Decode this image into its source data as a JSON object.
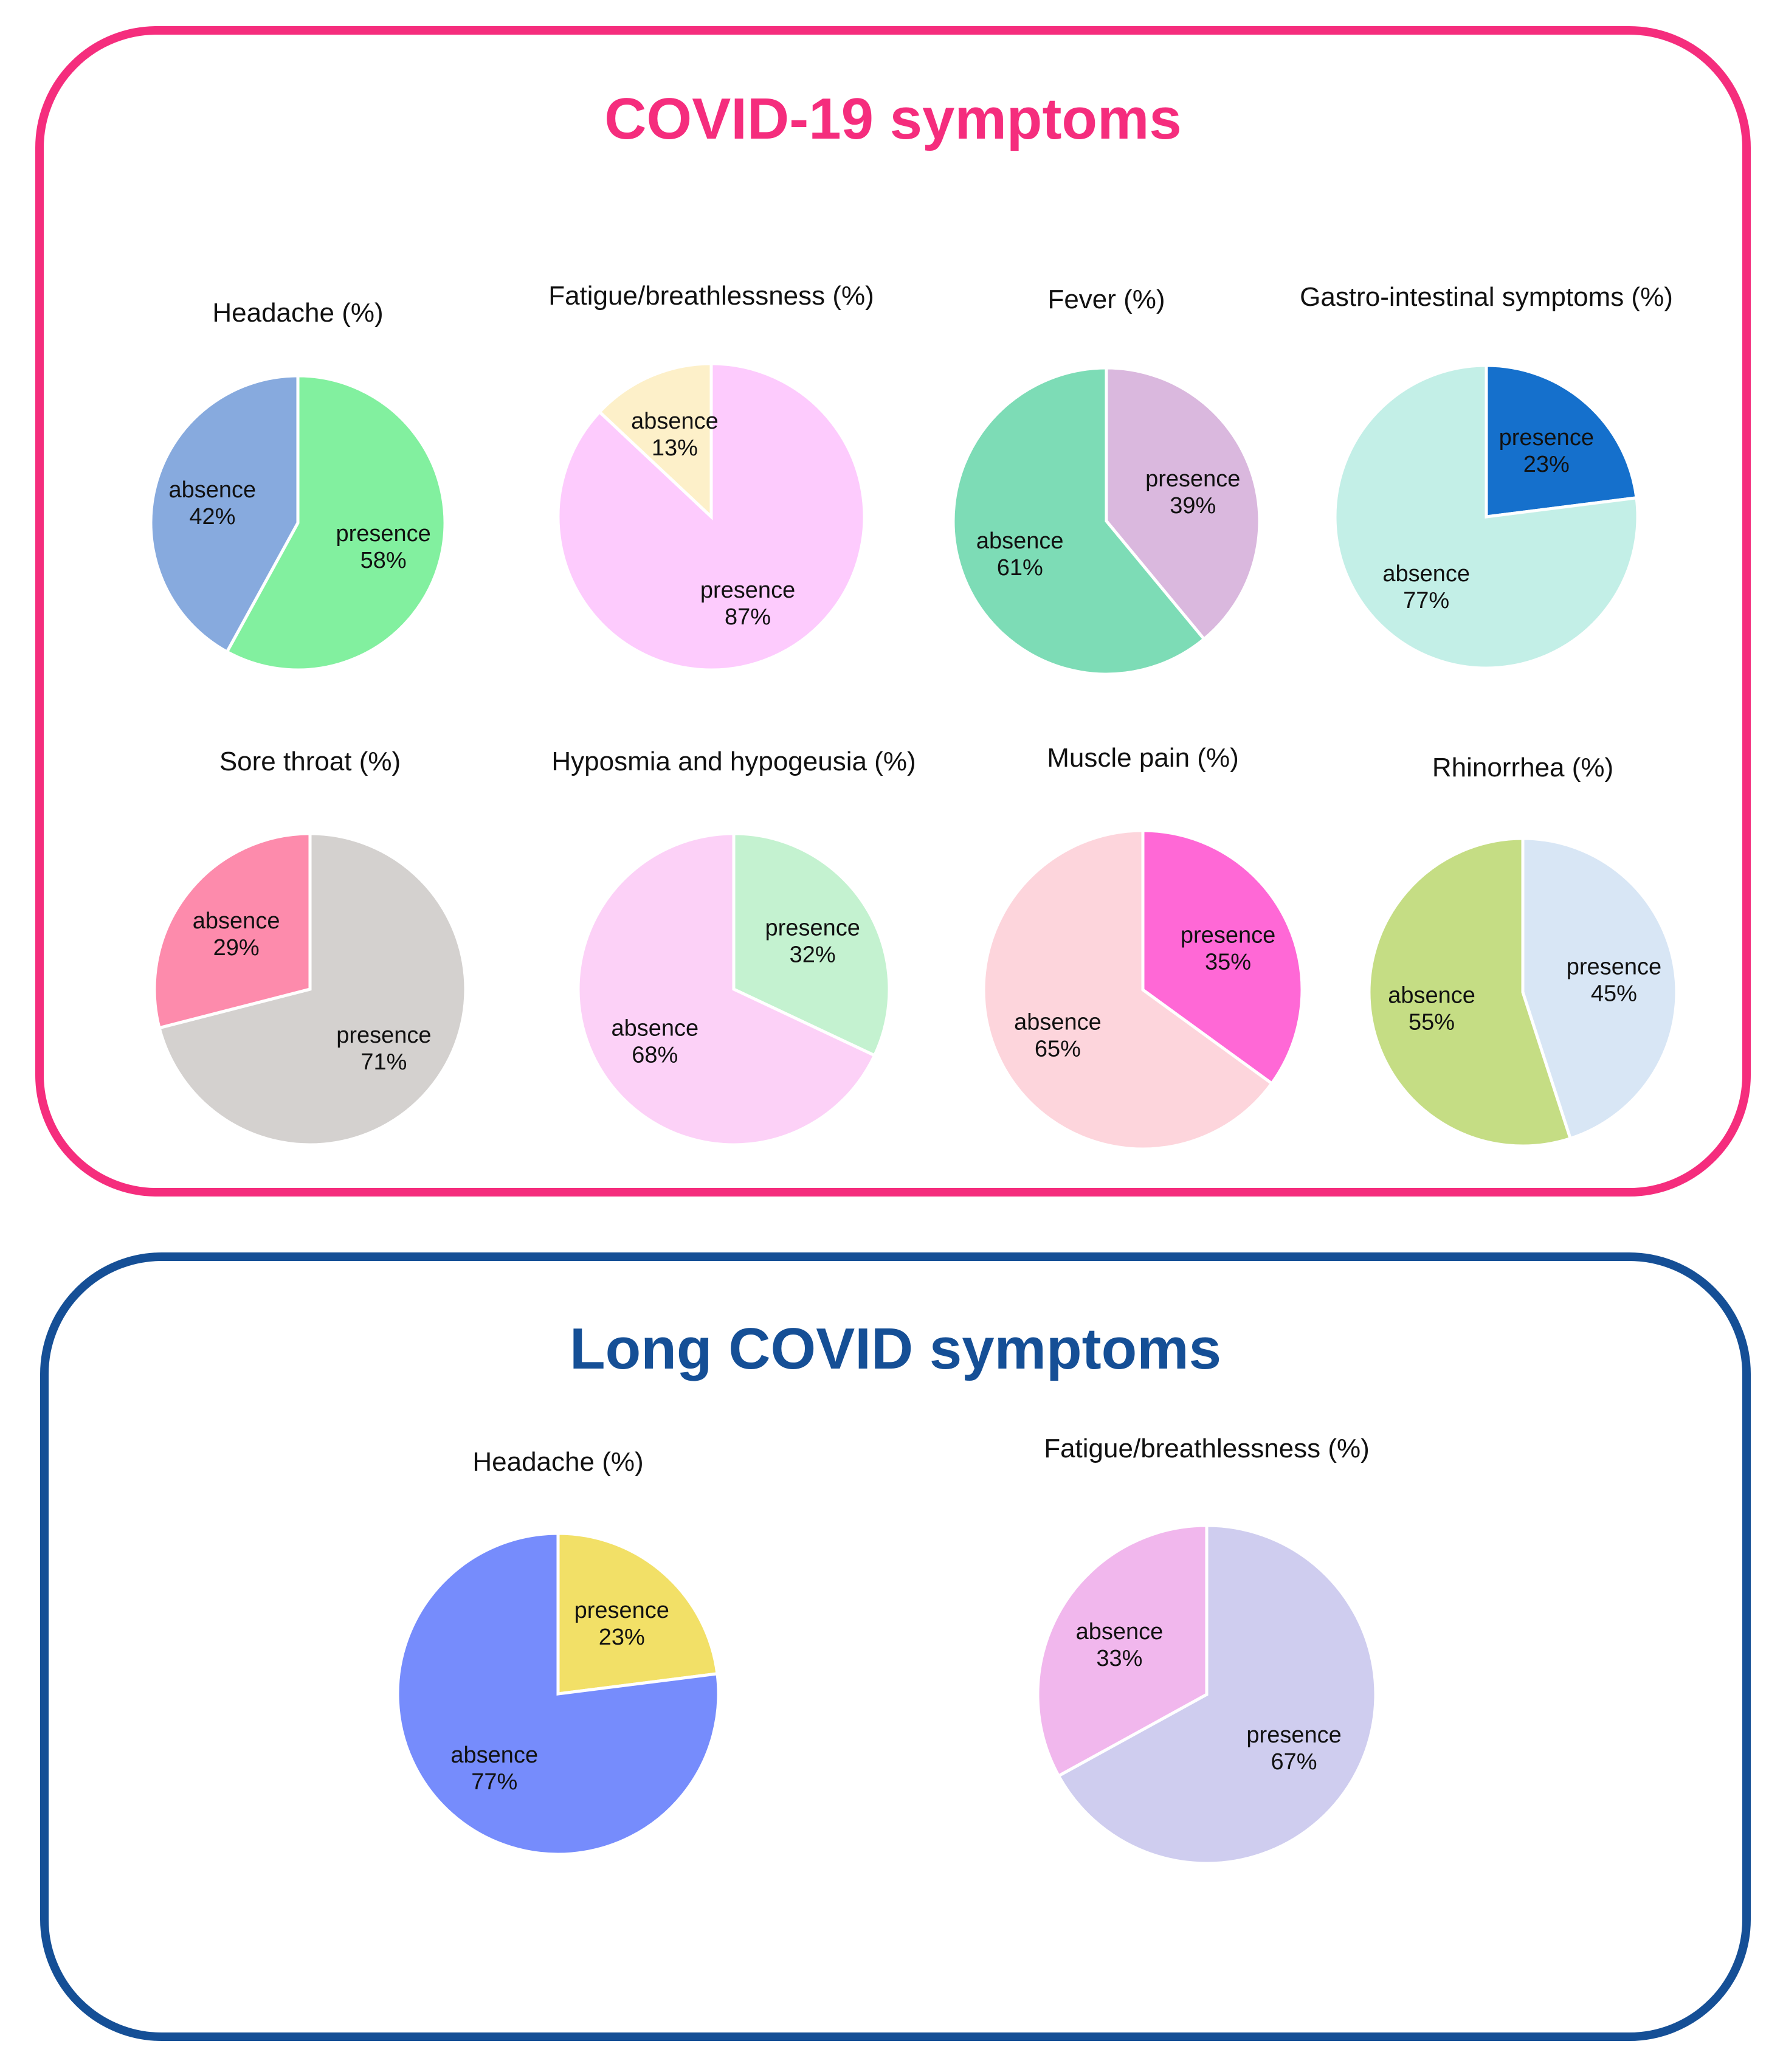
{
  "chart_data": [
    {
      "group": "COVID-19 symptoms",
      "charts": [
        {
          "type": "pie",
          "title": "Headache (%)",
          "slices": [
            {
              "label": "presence",
              "value": 58,
              "value_label": "58%",
              "color": "#82f09f"
            },
            {
              "label": "absence",
              "value": 42,
              "value_label": "42%",
              "color": "#87aade"
            }
          ]
        },
        {
          "type": "pie",
          "title": "Fatigue/breathlessness (%)",
          "slices": [
            {
              "label": "presence",
              "value": 87,
              "value_label": "87%",
              "color": "#fdcbfd"
            },
            {
              "label": "absence",
              "value": 13,
              "value_label": "13%",
              "color": "#fdf0c9"
            }
          ]
        },
        {
          "type": "pie",
          "title": "Fever (%)",
          "slices": [
            {
              "label": "presence",
              "value": 39,
              "value_label": "39%",
              "color": "#dab8de"
            },
            {
              "label": "absence",
              "value": 61,
              "value_label": "61%",
              "color": "#7ddcb6"
            }
          ]
        },
        {
          "type": "pie",
          "title": "Gastro-intestinal symptoms (%)",
          "slices": [
            {
              "label": "presence",
              "value": 23,
              "value_label": "23%",
              "color": "#1570cc"
            },
            {
              "label": "absence",
              "value": 77,
              "value_label": "77%",
              "color": "#c3efe7"
            }
          ]
        },
        {
          "type": "pie",
          "title": "Sore throat (%)",
          "slices": [
            {
              "label": "presence",
              "value": 71,
              "value_label": "71%",
              "color": "#d4d1cf"
            },
            {
              "label": "absence",
              "value": 29,
              "value_label": "29%",
              "color": "#fd8bac"
            }
          ]
        },
        {
          "type": "pie",
          "title": "Hyposmia and hypogeusia (%)",
          "slices": [
            {
              "label": "presence",
              "value": 32,
              "value_label": "32%",
              "color": "#c4f2d0"
            },
            {
              "label": "absence",
              "value": 68,
              "value_label": "68%",
              "color": "#fcd1f7"
            }
          ]
        },
        {
          "type": "pie",
          "title": "Muscle pain (%)",
          "slices": [
            {
              "label": "presence",
              "value": 35,
              "value_label": "35%",
              "color": "#ff68d6"
            },
            {
              "label": "absence",
              "value": 65,
              "value_label": "65%",
              "color": "#fdd5dc"
            }
          ]
        },
        {
          "type": "pie",
          "title": "Rhinorrhea (%)",
          "slices": [
            {
              "label": "presence",
              "value": 45,
              "value_label": "45%",
              "color": "#d8e6f5"
            },
            {
              "label": "absence",
              "value": 55,
              "value_label": "55%",
              "color": "#c5dd84"
            }
          ]
        }
      ]
    },
    {
      "group": "Long COVID symptoms",
      "charts": [
        {
          "type": "pie",
          "title": "Headache (%)",
          "slices": [
            {
              "label": "presence",
              "value": 23,
              "value_label": "23%",
              "color": "#f2e067"
            },
            {
              "label": "absence",
              "value": 77,
              "value_label": "77%",
              "color": "#768cfc"
            }
          ]
        },
        {
          "type": "pie",
          "title": "Fatigue/breathlessness (%)",
          "slices": [
            {
              "label": "presence",
              "value": 67,
              "value_label": "67%",
              "color": "#cfcdef"
            },
            {
              "label": "absence",
              "value": 33,
              "value_label": "33%",
              "color": "#f1b7ed"
            }
          ]
        }
      ]
    }
  ],
  "panels": {
    "covid_title": "COVID-19 symptoms",
    "long_title": "Long COVID symptoms",
    "covid_border_color": "#f52d7d",
    "long_border_color": "#154f96"
  }
}
